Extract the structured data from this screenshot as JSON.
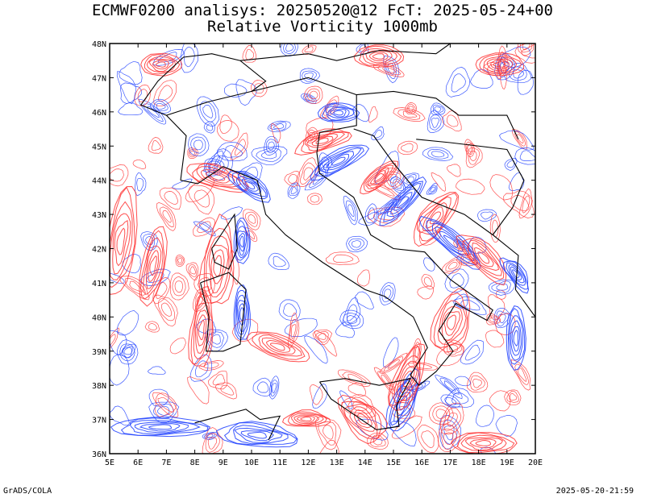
{
  "title_line1": "ECMWF0200 analisys: 20250520@12 FcT: 2025-05-24+00",
  "title_line2": "Relative Vorticity 1000mb",
  "footer_left": "GrADS/COLA",
  "footer_right": "2025-05-20-21:59",
  "colors": {
    "positive": "#ff3030",
    "negative": "#1a3cff",
    "coast": "#000000",
    "frame": "#000000"
  },
  "axes": {
    "lon_range": [
      5,
      20
    ],
    "lat_range": [
      36,
      48
    ],
    "x_ticks": [
      "5E",
      "6E",
      "7E",
      "8E",
      "9E",
      "10E",
      "11E",
      "12E",
      "13E",
      "14E",
      "15E",
      "16E",
      "17E",
      "18E",
      "19E",
      "20E"
    ],
    "y_ticks": [
      "36N",
      "37N",
      "38N",
      "39N",
      "40N",
      "41N",
      "42N",
      "43N",
      "44N",
      "45N",
      "46N",
      "47N",
      "48N"
    ]
  },
  "features": {
    "italy": [
      [
        7.5,
        44.0
      ],
      [
        7.7,
        45.3
      ],
      [
        7.0,
        45.9
      ],
      [
        8.5,
        46.3
      ],
      [
        10.0,
        46.6
      ],
      [
        12.0,
        47.0
      ],
      [
        13.7,
        46.5
      ],
      [
        13.7,
        45.6
      ],
      [
        12.4,
        45.4
      ],
      [
        12.3,
        44.8
      ],
      [
        12.4,
        44.2
      ],
      [
        13.6,
        43.5
      ],
      [
        14.2,
        42.4
      ],
      [
        15.0,
        42.0
      ],
      [
        16.1,
        41.9
      ],
      [
        17.0,
        41.1
      ],
      [
        18.5,
        40.2
      ],
      [
        18.3,
        39.9
      ],
      [
        17.2,
        40.4
      ],
      [
        16.6,
        39.6
      ],
      [
        17.1,
        39.0
      ],
      [
        16.5,
        38.4
      ],
      [
        15.9,
        38.0
      ],
      [
        15.6,
        38.3
      ],
      [
        16.2,
        39.1
      ],
      [
        15.7,
        40.0
      ],
      [
        14.7,
        40.6
      ],
      [
        14.0,
        40.8
      ],
      [
        12.5,
        41.6
      ],
      [
        11.2,
        42.4
      ],
      [
        10.5,
        43.0
      ],
      [
        10.2,
        44.0
      ],
      [
        9.0,
        44.4
      ],
      [
        8.1,
        43.9
      ],
      [
        7.5,
        44.0
      ]
    ],
    "sicily": [
      [
        12.4,
        38.1
      ],
      [
        13.3,
        38.2
      ],
      [
        14.5,
        38.0
      ],
      [
        15.6,
        38.2
      ],
      [
        15.1,
        37.4
      ],
      [
        15.2,
        36.8
      ],
      [
        14.4,
        36.7
      ],
      [
        12.8,
        37.6
      ],
      [
        12.4,
        38.1
      ]
    ],
    "sardinia": [
      [
        8.2,
        41.0
      ],
      [
        9.2,
        41.3
      ],
      [
        9.8,
        40.8
      ],
      [
        9.6,
        39.2
      ],
      [
        9.0,
        39.0
      ],
      [
        8.4,
        39.0
      ],
      [
        8.5,
        40.0
      ],
      [
        8.2,
        41.0
      ]
    ],
    "corsica": [
      [
        8.6,
        42.0
      ],
      [
        9.4,
        43.0
      ],
      [
        9.5,
        42.0
      ],
      [
        9.2,
        41.4
      ],
      [
        8.7,
        41.6
      ],
      [
        8.6,
        42.0
      ]
    ],
    "adriatic_east": [
      [
        13.6,
        45.5
      ],
      [
        14.3,
        45.3
      ],
      [
        15.0,
        44.5
      ],
      [
        16.0,
        43.5
      ],
      [
        17.5,
        43.0
      ],
      [
        18.5,
        42.4
      ],
      [
        19.4,
        41.8
      ],
      [
        19.3,
        40.8
      ],
      [
        20.0,
        40.0
      ]
    ],
    "tunisia": [
      [
        8.0,
        36.9
      ],
      [
        9.8,
        37.3
      ],
      [
        10.3,
        37.0
      ],
      [
        11.0,
        37.1
      ],
      [
        10.6,
        36.4
      ]
    ],
    "swiss_border": [
      [
        7.0,
        45.9
      ],
      [
        6.1,
        46.2
      ],
      [
        6.7,
        46.9
      ],
      [
        7.6,
        47.6
      ],
      [
        8.6,
        47.7
      ],
      [
        9.6,
        47.5
      ],
      [
        10.5,
        46.9
      ],
      [
        10.0,
        46.6
      ]
    ],
    "austria_border": [
      [
        9.6,
        47.5
      ],
      [
        12.0,
        47.7
      ],
      [
        13.0,
        47.5
      ],
      [
        14.5,
        47.8
      ],
      [
        16.5,
        47.7
      ],
      [
        17.0,
        48.0
      ]
    ],
    "slovenia_border": [
      [
        13.7,
        46.5
      ],
      [
        15.0,
        46.6
      ],
      [
        16.5,
        46.4
      ],
      [
        17.3,
        45.9
      ],
      [
        19.0,
        45.9
      ],
      [
        19.4,
        45.2
      ]
    ],
    "balkan_inner": [
      [
        15.8,
        45.2
      ],
      [
        17.0,
        45.1
      ],
      [
        19.0,
        44.9
      ],
      [
        19.6,
        44.0
      ],
      [
        19.2,
        43.2
      ],
      [
        18.5,
        42.4
      ]
    ]
  }
}
